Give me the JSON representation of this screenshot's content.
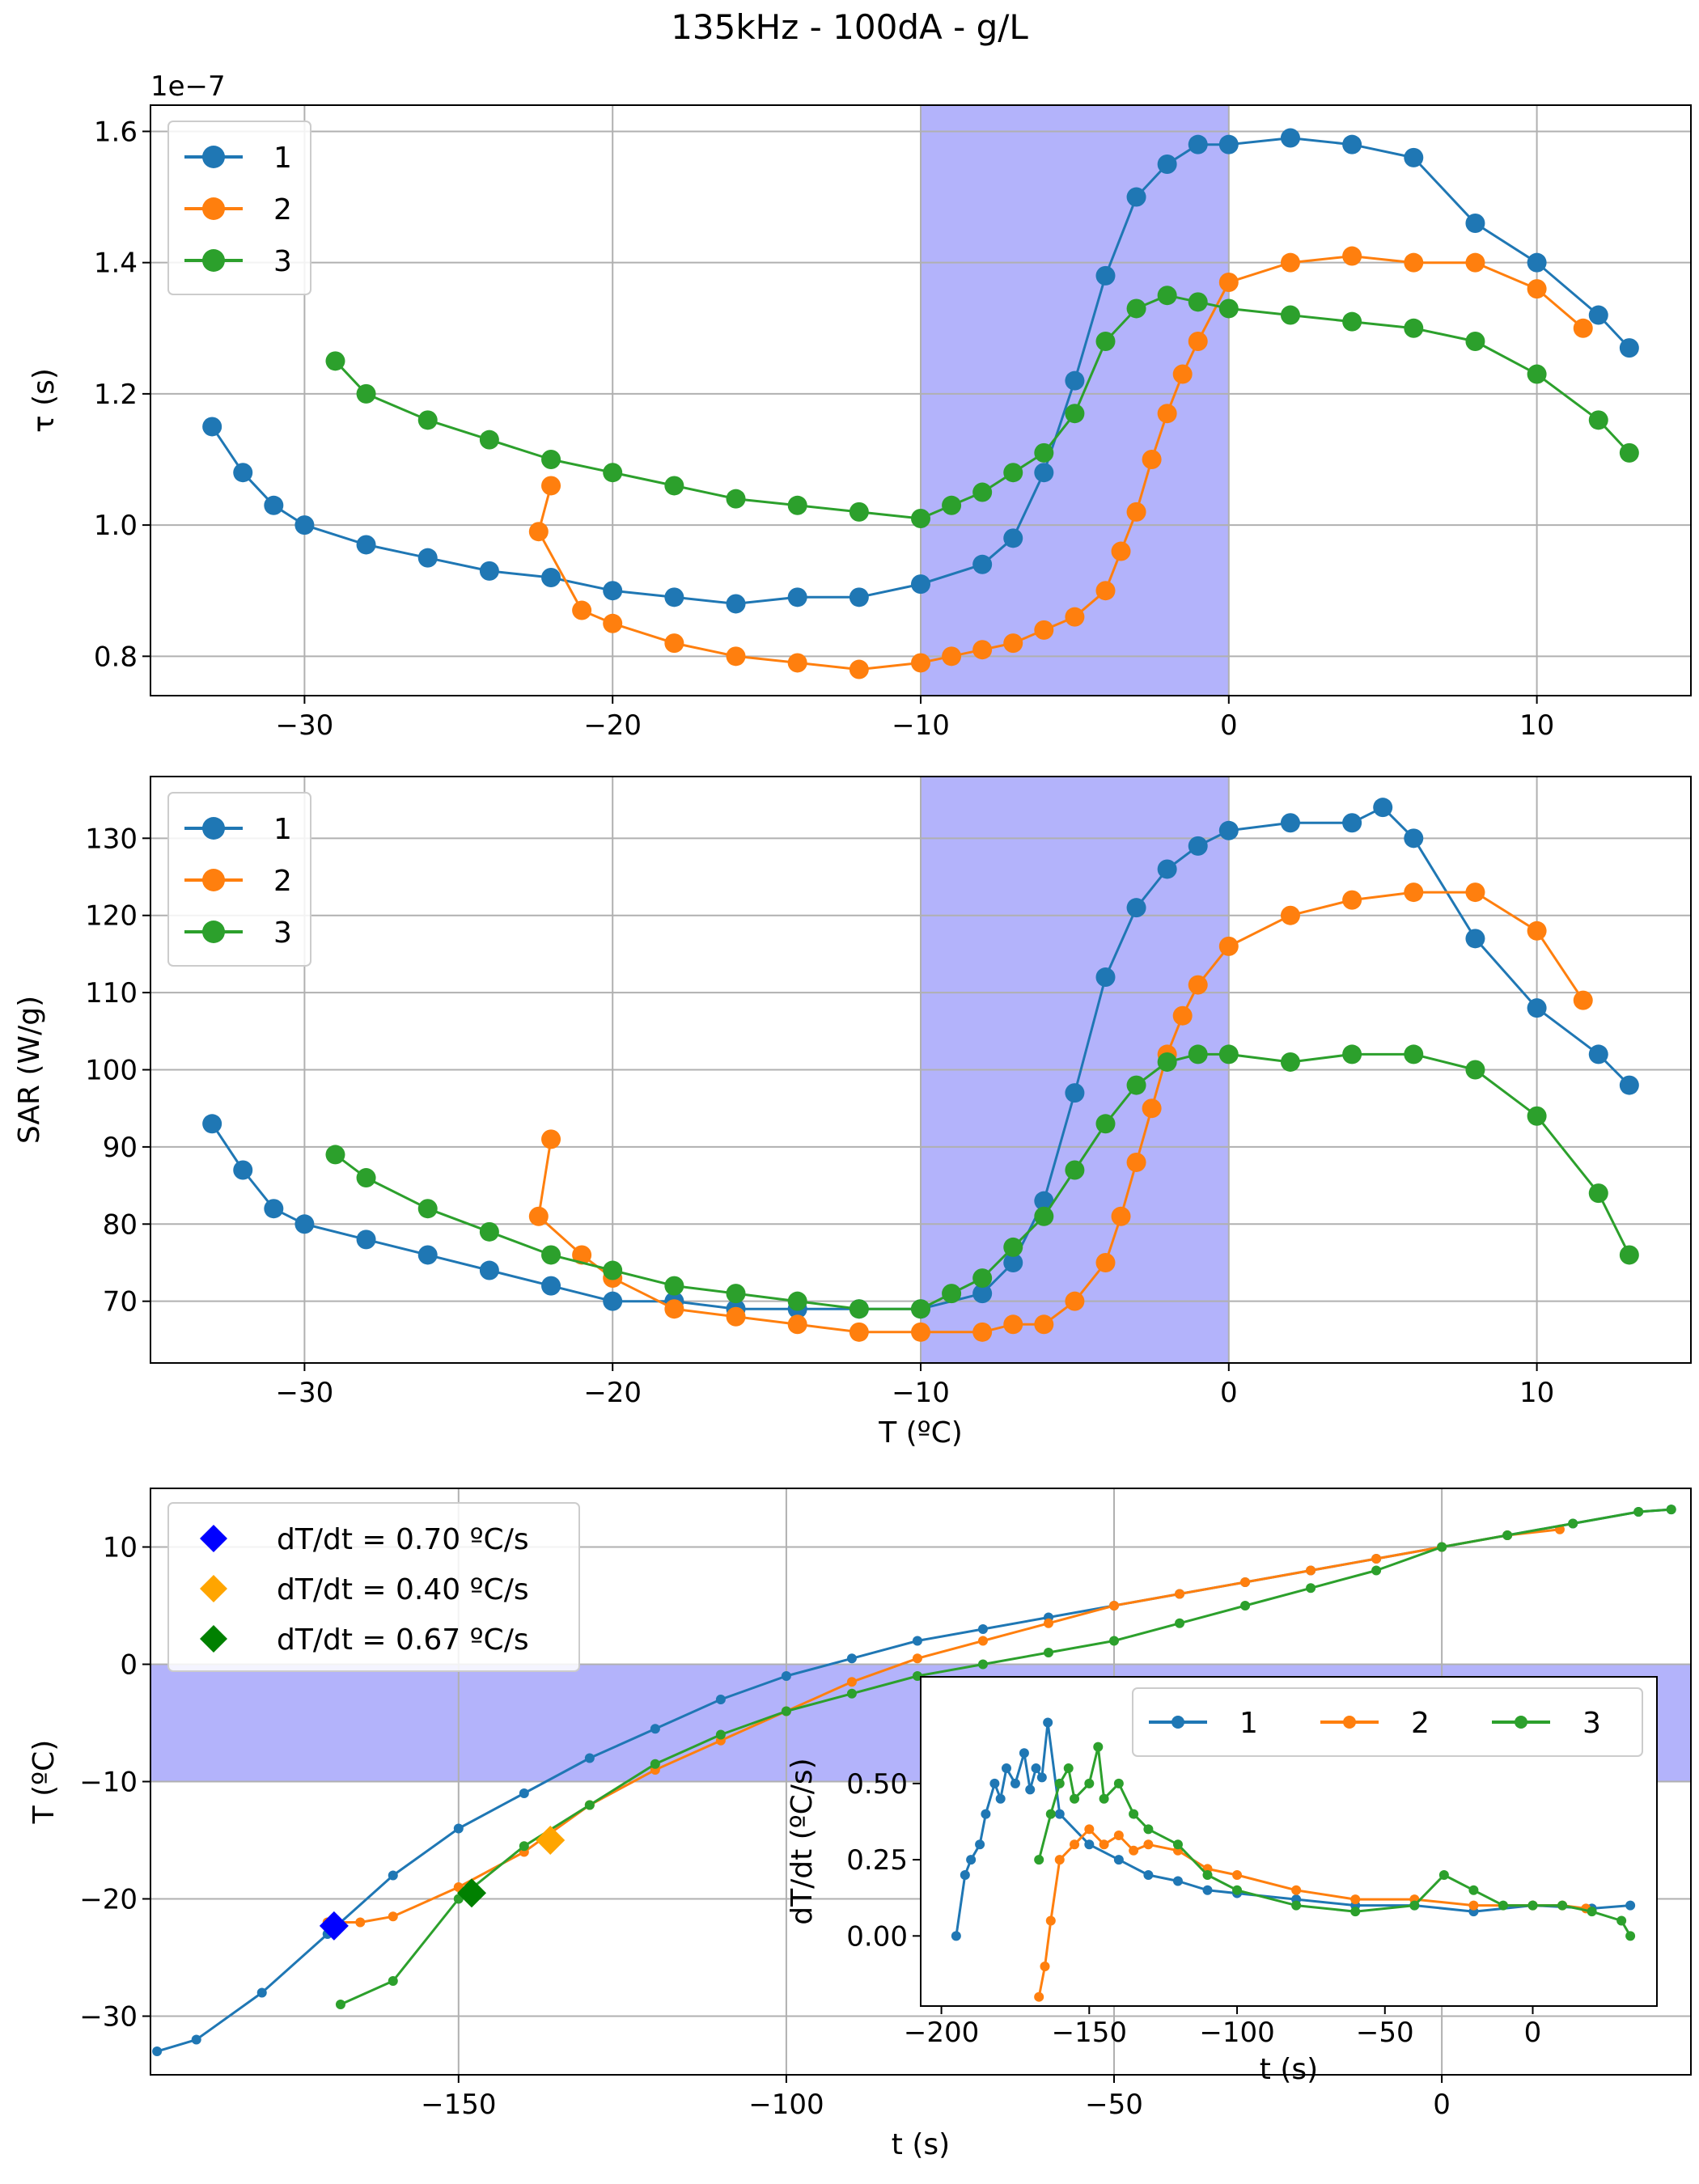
{
  "figure": {
    "title": "135kHz - 100dA - g/L"
  },
  "colors": {
    "s1": "#1f77b4",
    "s2": "#ff7f0e",
    "s3": "#2ca02c",
    "band": "#b3b3fb",
    "grid": "#b0b0b0"
  },
  "chart_data": [
    {
      "id": "tau",
      "type": "line",
      "title": "",
      "xlabel": "",
      "ylabel": "τ (s)",
      "y_multiplier": "1e−7",
      "xlim": [
        -35,
        15
      ],
      "ylim": [
        0.74,
        1.64
      ],
      "xticks": [
        -30,
        -20,
        -10,
        0,
        10
      ],
      "xtick_labels": [
        "−30",
        "−20",
        "−10",
        "0",
        "10"
      ],
      "yticks": [
        0.8,
        1.0,
        1.2,
        1.4,
        1.6
      ],
      "ytick_labels": [
        "0.8",
        "1.0",
        "1.2",
        "1.4",
        "1.6"
      ],
      "band": {
        "axis": "x",
        "from": -10,
        "to": 0
      },
      "grid": true,
      "legend": "upper left",
      "series": [
        {
          "name": "1",
          "color": "#1f77b4",
          "x": [
            -33,
            -32,
            -31,
            -30,
            -28,
            -26,
            -24,
            -22,
            -20,
            -18,
            -16,
            -14,
            -12,
            -10,
            -8,
            -7,
            -6,
            -5,
            -4,
            -3,
            -2,
            -1,
            0,
            2,
            4,
            6,
            8,
            10,
            12,
            13
          ],
          "y": [
            1.15,
            1.08,
            1.03,
            1.0,
            0.97,
            0.95,
            0.93,
            0.92,
            0.9,
            0.89,
            0.88,
            0.89,
            0.89,
            0.91,
            0.94,
            0.98,
            1.08,
            1.22,
            1.38,
            1.5,
            1.55,
            1.58,
            1.58,
            1.59,
            1.58,
            1.56,
            1.46,
            1.4,
            1.32,
            1.27
          ]
        },
        {
          "name": "2",
          "color": "#ff7f0e",
          "x": [
            -22,
            -22.4,
            -21,
            -20,
            -18,
            -16,
            -14,
            -12,
            -10,
            -9,
            -8,
            -7,
            -6,
            -5,
            -4,
            -3.5,
            -3,
            -2.5,
            -2,
            -1.5,
            -1,
            0,
            2,
            4,
            6,
            8,
            10,
            11.5
          ],
          "y": [
            1.06,
            0.99,
            0.87,
            0.85,
            0.82,
            0.8,
            0.79,
            0.78,
            0.79,
            0.8,
            0.81,
            0.82,
            0.84,
            0.86,
            0.9,
            0.96,
            1.02,
            1.1,
            1.17,
            1.23,
            1.28,
            1.37,
            1.4,
            1.41,
            1.4,
            1.4,
            1.36,
            1.3
          ]
        },
        {
          "name": "3",
          "color": "#2ca02c",
          "x": [
            -29,
            -28,
            -26,
            -24,
            -22,
            -20,
            -18,
            -16,
            -14,
            -12,
            -10,
            -9,
            -8,
            -7,
            -6,
            -5,
            -4,
            -3,
            -2,
            -1,
            0,
            2,
            4,
            6,
            8,
            10,
            12,
            13
          ],
          "y": [
            1.25,
            1.2,
            1.16,
            1.13,
            1.1,
            1.08,
            1.06,
            1.04,
            1.03,
            1.02,
            1.01,
            1.03,
            1.05,
            1.08,
            1.11,
            1.17,
            1.28,
            1.33,
            1.35,
            1.34,
            1.33,
            1.32,
            1.31,
            1.3,
            1.28,
            1.23,
            1.16,
            1.11
          ]
        }
      ]
    },
    {
      "id": "sar",
      "type": "line",
      "title": "",
      "xlabel": "T (ºC)",
      "ylabel": "SAR (W/g)",
      "xlim": [
        -35,
        15
      ],
      "ylim": [
        62,
        138
      ],
      "xticks": [
        -30,
        -20,
        -10,
        0,
        10
      ],
      "xtick_labels": [
        "−30",
        "−20",
        "−10",
        "0",
        "10"
      ],
      "yticks": [
        70,
        80,
        90,
        100,
        110,
        120,
        130
      ],
      "ytick_labels": [
        "70",
        "80",
        "90",
        "100",
        "110",
        "120",
        "130"
      ],
      "band": {
        "axis": "x",
        "from": -10,
        "to": 0
      },
      "grid": true,
      "legend": "upper left",
      "series": [
        {
          "name": "1",
          "color": "#1f77b4",
          "x": [
            -33,
            -32,
            -31,
            -30,
            -28,
            -26,
            -24,
            -22,
            -20,
            -18,
            -16,
            -14,
            -12,
            -10,
            -8,
            -7,
            -6,
            -5,
            -4,
            -3,
            -2,
            -1,
            0,
            2,
            4,
            5,
            6,
            8,
            10,
            12,
            13
          ],
          "y": [
            93,
            87,
            82,
            80,
            78,
            76,
            74,
            72,
            70,
            70,
            69,
            69,
            69,
            69,
            71,
            75,
            83,
            97,
            112,
            121,
            126,
            129,
            131,
            132,
            132,
            134,
            130,
            117,
            108,
            102,
            98
          ]
        },
        {
          "name": "2",
          "color": "#ff7f0e",
          "x": [
            -22,
            -22.4,
            -21,
            -20,
            -18,
            -16,
            -14,
            -12,
            -10,
            -8,
            -7,
            -6,
            -5,
            -4,
            -3.5,
            -3,
            -2.5,
            -2,
            -1.5,
            -1,
            0,
            2,
            4,
            6,
            8,
            10,
            11.5
          ],
          "y": [
            91,
            81,
            76,
            73,
            69,
            68,
            67,
            66,
            66,
            66,
            67,
            67,
            70,
            75,
            81,
            88,
            95,
            102,
            107,
            111,
            116,
            120,
            122,
            123,
            123,
            118,
            109
          ]
        },
        {
          "name": "3",
          "color": "#2ca02c",
          "x": [
            -29,
            -28,
            -26,
            -24,
            -22,
            -20,
            -18,
            -16,
            -14,
            -12,
            -10,
            -9,
            -8,
            -7,
            -6,
            -5,
            -4,
            -3,
            -2,
            -1,
            0,
            2,
            4,
            6,
            8,
            10,
            12,
            13
          ],
          "y": [
            89,
            86,
            82,
            79,
            76,
            74,
            72,
            71,
            70,
            69,
            69,
            71,
            73,
            77,
            81,
            87,
            93,
            98,
            101,
            102,
            102,
            101,
            102,
            102,
            100,
            94,
            84,
            76
          ]
        }
      ]
    },
    {
      "id": "temp",
      "type": "line",
      "title": "",
      "xlabel": "t (s)",
      "ylabel": "T (ºC)",
      "xlim": [
        -197,
        38
      ],
      "ylim": [
        -35,
        15
      ],
      "xticks": [
        -150,
        -100,
        -50,
        0
      ],
      "xtick_labels": [
        "−150",
        "−100",
        "−50",
        "0"
      ],
      "yticks": [
        -30,
        -20,
        -10,
        0,
        10
      ],
      "ytick_labels": [
        "−30",
        "−20",
        "−10",
        "0",
        "10"
      ],
      "band": {
        "axis": "y",
        "from": -10,
        "to": 0
      },
      "grid": true,
      "legend": "upper left",
      "legend_entries": [
        "dT/dt = 0.70 ºC/s",
        "dT/dt = 0.40 ºC/s",
        "dT/dt = 0.67 ºC/s"
      ],
      "markers": [
        {
          "x": -169,
          "y": -22.3,
          "color": "#0000ff"
        },
        {
          "x": -136,
          "y": -15,
          "color": "#ffa500"
        },
        {
          "x": -148,
          "y": -19.5,
          "color": "#008000"
        }
      ],
      "series": [
        {
          "name": "1",
          "color": "#1f77b4",
          "x": [
            -196,
            -190,
            -180,
            -170,
            -160,
            -150,
            -140,
            -130,
            -120,
            -110,
            -100,
            -90,
            -80,
            -70,
            -60,
            -50,
            -40,
            -30,
            -20,
            -10,
            0,
            10,
            20,
            30,
            35
          ],
          "y": [
            -33,
            -32,
            -28,
            -23,
            -18,
            -14,
            -11,
            -8,
            -5.5,
            -3,
            -1,
            0.5,
            2,
            3,
            4,
            5,
            6,
            7,
            8,
            9,
            10,
            11,
            12,
            13,
            13.2
          ]
        },
        {
          "name": "2",
          "color": "#ff7f0e",
          "x": [
            -170,
            -165,
            -160,
            -150,
            -140,
            -130,
            -120,
            -110,
            -100,
            -90,
            -80,
            -70,
            -60,
            -50,
            -40,
            -30,
            -20,
            -10,
            0,
            10,
            18
          ],
          "y": [
            -22,
            -22,
            -21.5,
            -19,
            -16,
            -12,
            -9,
            -6.5,
            -4,
            -1.5,
            0.5,
            2,
            3.5,
            5,
            6,
            7,
            8,
            9,
            10,
            11,
            11.5
          ]
        },
        {
          "name": "3",
          "color": "#2ca02c",
          "x": [
            -168,
            -160,
            -150,
            -140,
            -130,
            -120,
            -110,
            -100,
            -90,
            -80,
            -70,
            -60,
            -50,
            -40,
            -30,
            -20,
            -10,
            0,
            10,
            20,
            30,
            35
          ],
          "y": [
            -29,
            -27,
            -20,
            -15.5,
            -12,
            -8.5,
            -6,
            -4,
            -2.5,
            -1,
            0,
            1,
            2,
            3.5,
            5,
            6.5,
            8,
            10,
            11,
            12,
            13,
            13.2
          ]
        }
      ]
    },
    {
      "id": "rate-inset",
      "type": "line",
      "title": "",
      "xlabel": "t (s)",
      "ylabel": "dT/dt (ºC/s)",
      "xlim": [
        -207,
        42
      ],
      "ylim": [
        -0.23,
        0.85
      ],
      "xticks": [
        -200,
        -150,
        -100,
        -50,
        0
      ],
      "xtick_labels": [
        "−200",
        "−150",
        "−100",
        "−50",
        "0"
      ],
      "yticks": [
        0.0,
        0.25,
        0.5
      ],
      "ytick_labels": [
        "0.00",
        "0.25",
        "0.50"
      ],
      "grid": false,
      "legend": "upper right",
      "series": [
        {
          "name": "1",
          "color": "#1f77b4",
          "x": [
            -195,
            -192,
            -190,
            -187,
            -185,
            -182,
            -180,
            -178,
            -175,
            -172,
            -170,
            -168,
            -166,
            -164,
            -160,
            -150,
            -140,
            -130,
            -120,
            -110,
            -100,
            -80,
            -60,
            -40,
            -20,
            0,
            20,
            33
          ],
          "y": [
            0.0,
            0.2,
            0.25,
            0.3,
            0.4,
            0.5,
            0.45,
            0.55,
            0.5,
            0.6,
            0.48,
            0.55,
            0.52,
            0.7,
            0.4,
            0.3,
            0.25,
            0.2,
            0.18,
            0.15,
            0.14,
            0.12,
            0.1,
            0.1,
            0.08,
            0.1,
            0.09,
            0.1
          ]
        },
        {
          "name": "2",
          "color": "#ff7f0e",
          "x": [
            -167,
            -165,
            -163,
            -160,
            -155,
            -150,
            -145,
            -140,
            -135,
            -130,
            -120,
            -110,
            -100,
            -80,
            -60,
            -40,
            -20,
            0,
            10,
            18
          ],
          "y": [
            -0.2,
            -0.1,
            0.05,
            0.25,
            0.3,
            0.35,
            0.3,
            0.33,
            0.28,
            0.3,
            0.28,
            0.22,
            0.2,
            0.15,
            0.12,
            0.12,
            0.1,
            0.1,
            0.1,
            0.09
          ]
        },
        {
          "name": "3",
          "color": "#2ca02c",
          "x": [
            -167,
            -163,
            -160,
            -157,
            -155,
            -150,
            -147,
            -145,
            -140,
            -135,
            -130,
            -120,
            -110,
            -100,
            -80,
            -60,
            -40,
            -30,
            -20,
            -10,
            0,
            10,
            20,
            30,
            33
          ],
          "y": [
            0.25,
            0.4,
            0.5,
            0.55,
            0.45,
            0.5,
            0.62,
            0.45,
            0.5,
            0.4,
            0.35,
            0.3,
            0.2,
            0.15,
            0.1,
            0.08,
            0.1,
            0.2,
            0.15,
            0.1,
            0.1,
            0.1,
            0.08,
            0.05,
            0.0
          ]
        }
      ]
    }
  ]
}
